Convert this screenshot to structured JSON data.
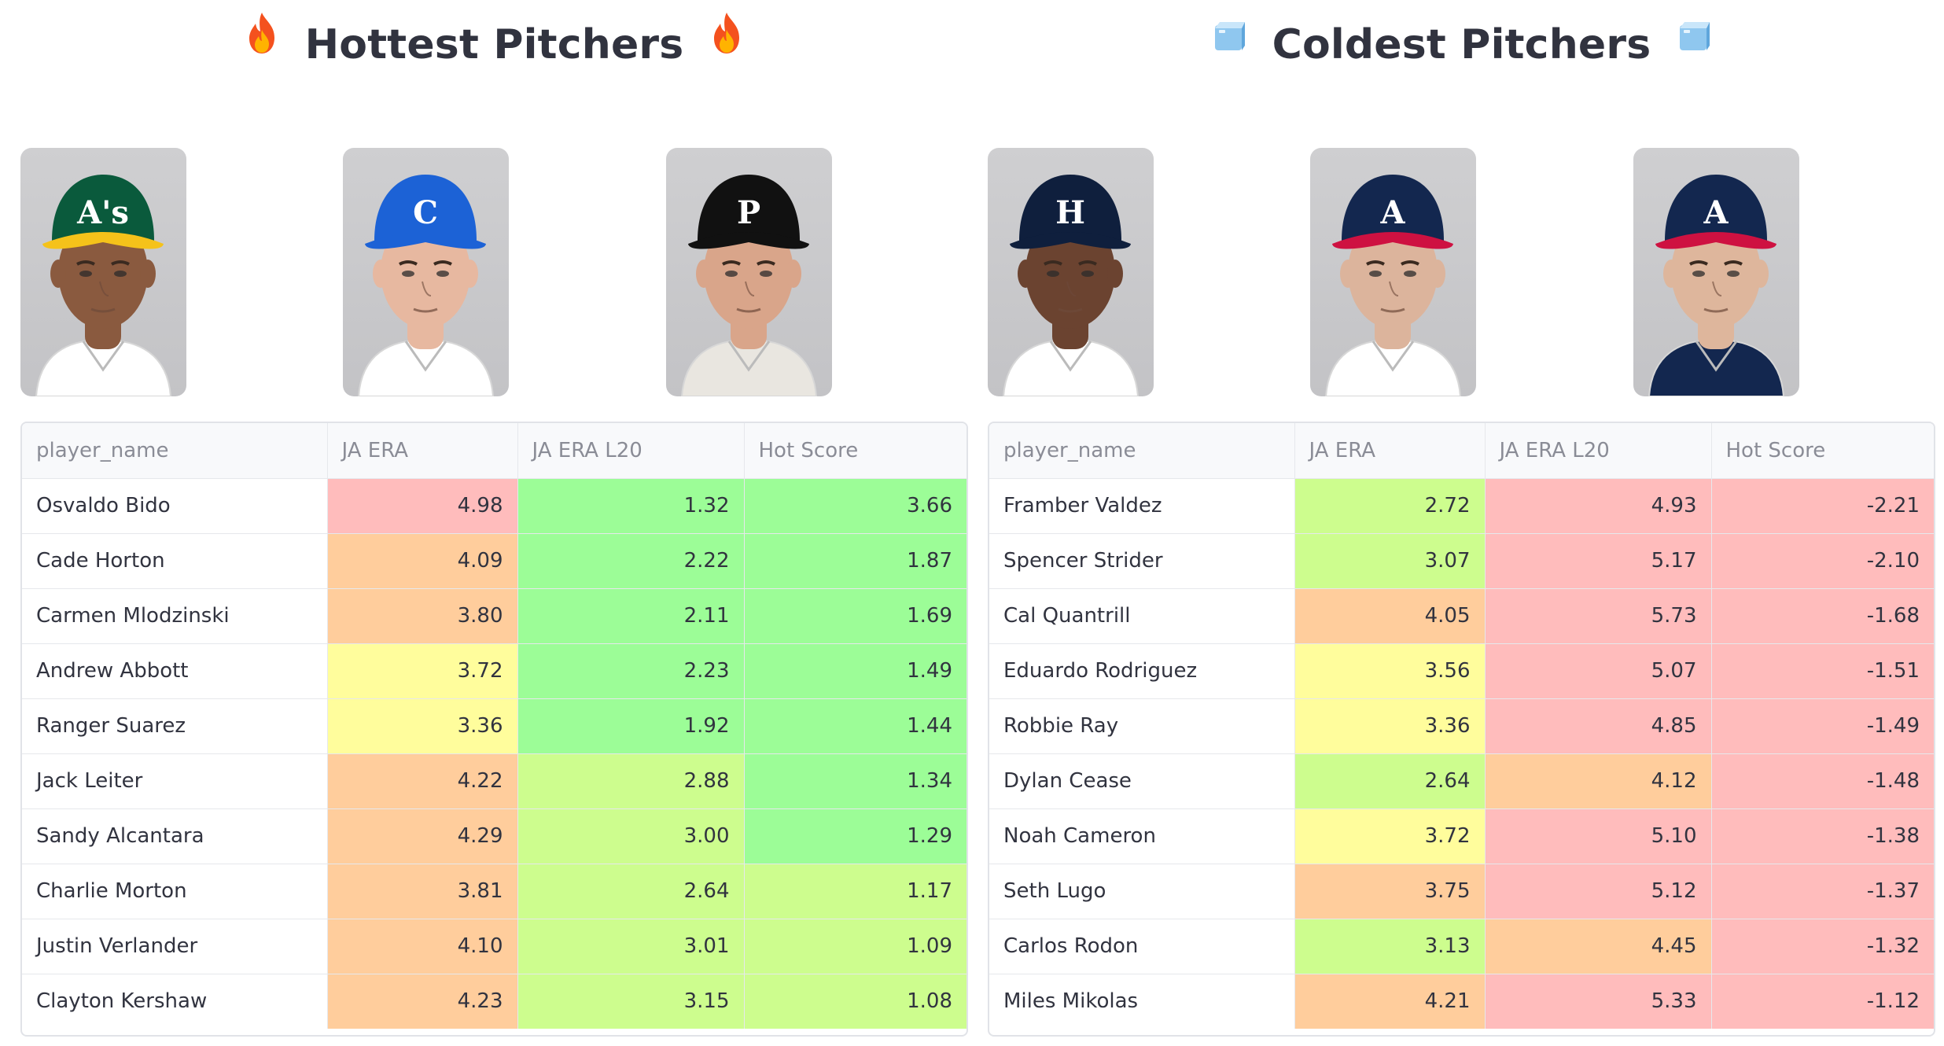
{
  "colors": {
    "red": "#ffbcbc",
    "orange": "#ffcd9c",
    "yellow": "#fffd9c",
    "lightgreen": "#cdfd8e",
    "green": "#9cfd97"
  },
  "hot": {
    "title": "Hottest Pitchers",
    "left_icon": "fire-icon",
    "right_icon": "fire-icon",
    "photos": [
      {
        "alt": "Athletics pitcher headshot",
        "cap": "athletics-cap",
        "cap_color": "#0a5a3c",
        "brim_color": "#f5c21a",
        "logo": "A's",
        "skin": "#8a5a3f",
        "jersey": "#ffffff"
      },
      {
        "alt": "Cubs pitcher headshot",
        "cap": "cubs-cap",
        "cap_color": "#1c62d6",
        "brim_color": "#1c62d6",
        "logo": "C",
        "skin": "#e7b8a0",
        "jersey": "#ffffff"
      },
      {
        "alt": "Pirates pitcher headshot",
        "cap": "pirates-cap",
        "cap_color": "#111111",
        "brim_color": "#111111",
        "logo": "P",
        "skin": "#d9a58a",
        "jersey": "#e9e6e0"
      }
    ],
    "columns": [
      "player_name",
      "JA ERA",
      "JA ERA L20",
      "Hot Score"
    ],
    "rows": [
      {
        "name": "Osvaldo Bido",
        "era": "4.98",
        "era_l20": "1.32",
        "hot": "3.66",
        "c1": "red",
        "c2": "green",
        "c3": "green"
      },
      {
        "name": "Cade Horton",
        "era": "4.09",
        "era_l20": "2.22",
        "hot": "1.87",
        "c1": "orange",
        "c2": "green",
        "c3": "green"
      },
      {
        "name": "Carmen Mlodzinski",
        "era": "3.80",
        "era_l20": "2.11",
        "hot": "1.69",
        "c1": "orange",
        "c2": "green",
        "c3": "green"
      },
      {
        "name": "Andrew Abbott",
        "era": "3.72",
        "era_l20": "2.23",
        "hot": "1.49",
        "c1": "yellow",
        "c2": "green",
        "c3": "green"
      },
      {
        "name": "Ranger Suarez",
        "era": "3.36",
        "era_l20": "1.92",
        "hot": "1.44",
        "c1": "yellow",
        "c2": "green",
        "c3": "green"
      },
      {
        "name": "Jack Leiter",
        "era": "4.22",
        "era_l20": "2.88",
        "hot": "1.34",
        "c1": "orange",
        "c2": "lightgreen",
        "c3": "green"
      },
      {
        "name": "Sandy Alcantara",
        "era": "4.29",
        "era_l20": "3.00",
        "hot": "1.29",
        "c1": "orange",
        "c2": "lightgreen",
        "c3": "green"
      },
      {
        "name": "Charlie Morton",
        "era": "3.81",
        "era_l20": "2.64",
        "hot": "1.17",
        "c1": "orange",
        "c2": "lightgreen",
        "c3": "lightgreen"
      },
      {
        "name": "Justin Verlander",
        "era": "4.10",
        "era_l20": "3.01",
        "hot": "1.09",
        "c1": "orange",
        "c2": "lightgreen",
        "c3": "lightgreen"
      },
      {
        "name": "Clayton Kershaw",
        "era": "4.23",
        "era_l20": "3.15",
        "hot": "1.08",
        "c1": "orange",
        "c2": "lightgreen",
        "c3": "lightgreen"
      }
    ]
  },
  "cold": {
    "title": "Coldest Pitchers",
    "left_icon": "ice-cube-icon",
    "right_icon": "ice-cube-icon",
    "photos": [
      {
        "alt": "Astros pitcher headshot",
        "cap": "astros-cap",
        "cap_color": "#0f1f3d",
        "brim_color": "#0f1f3d",
        "logo": "H",
        "skin": "#6b4330",
        "jersey": "#ffffff"
      },
      {
        "alt": "Braves pitcher headshot",
        "cap": "braves-cap",
        "cap_color": "#13274f",
        "brim_color": "#ce1141",
        "logo": "A",
        "skin": "#dcb49c",
        "jersey": "#ffffff"
      },
      {
        "alt": "Braves pitcher headshot",
        "cap": "braves-cap",
        "cap_color": "#13274f",
        "brim_color": "#ce1141",
        "logo": "A",
        "skin": "#deb69c",
        "jersey": "#13274f"
      }
    ],
    "columns": [
      "player_name",
      "JA ERA",
      "JA ERA L20",
      "Hot Score"
    ],
    "rows": [
      {
        "name": "Framber Valdez",
        "era": "2.72",
        "era_l20": "4.93",
        "hot": "-2.21",
        "c1": "lightgreen",
        "c2": "red",
        "c3": "red"
      },
      {
        "name": "Spencer Strider",
        "era": "3.07",
        "era_l20": "5.17",
        "hot": "-2.10",
        "c1": "lightgreen",
        "c2": "red",
        "c3": "red"
      },
      {
        "name": "Cal Quantrill",
        "era": "4.05",
        "era_l20": "5.73",
        "hot": "-1.68",
        "c1": "orange",
        "c2": "red",
        "c3": "red"
      },
      {
        "name": "Eduardo Rodriguez",
        "era": "3.56",
        "era_l20": "5.07",
        "hot": "-1.51",
        "c1": "yellow",
        "c2": "red",
        "c3": "red"
      },
      {
        "name": "Robbie Ray",
        "era": "3.36",
        "era_l20": "4.85",
        "hot": "-1.49",
        "c1": "yellow",
        "c2": "red",
        "c3": "red"
      },
      {
        "name": "Dylan Cease",
        "era": "2.64",
        "era_l20": "4.12",
        "hot": "-1.48",
        "c1": "lightgreen",
        "c2": "orange",
        "c3": "red"
      },
      {
        "name": "Noah Cameron",
        "era": "3.72",
        "era_l20": "5.10",
        "hot": "-1.38",
        "c1": "yellow",
        "c2": "red",
        "c3": "red"
      },
      {
        "name": "Seth Lugo",
        "era": "3.75",
        "era_l20": "5.12",
        "hot": "-1.37",
        "c1": "orange",
        "c2": "red",
        "c3": "red"
      },
      {
        "name": "Carlos Rodon",
        "era": "3.13",
        "era_l20": "4.45",
        "hot": "-1.32",
        "c1": "lightgreen",
        "c2": "orange",
        "c3": "red"
      },
      {
        "name": "Miles Mikolas",
        "era": "4.21",
        "era_l20": "5.33",
        "hot": "-1.12",
        "c1": "orange",
        "c2": "red",
        "c3": "red"
      }
    ]
  }
}
